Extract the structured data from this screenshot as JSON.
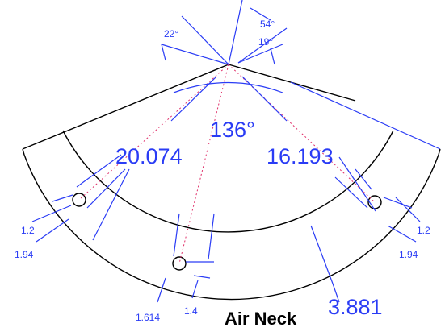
{
  "drawing": {
    "angles": {
      "left_small": "22°",
      "top": "54°",
      "top_small": "19°",
      "center": "136°"
    },
    "radii": {
      "left": "20.074",
      "right": "16.193"
    },
    "left_dims": {
      "inner": "1.2",
      "outer": "1.94"
    },
    "right_dims": {
      "inner": "1.2",
      "outer": "1.94"
    },
    "bottom_dims": {
      "outer": "1.614",
      "inner": "1.4",
      "width": "3.881"
    },
    "title": "Air Neck"
  }
}
